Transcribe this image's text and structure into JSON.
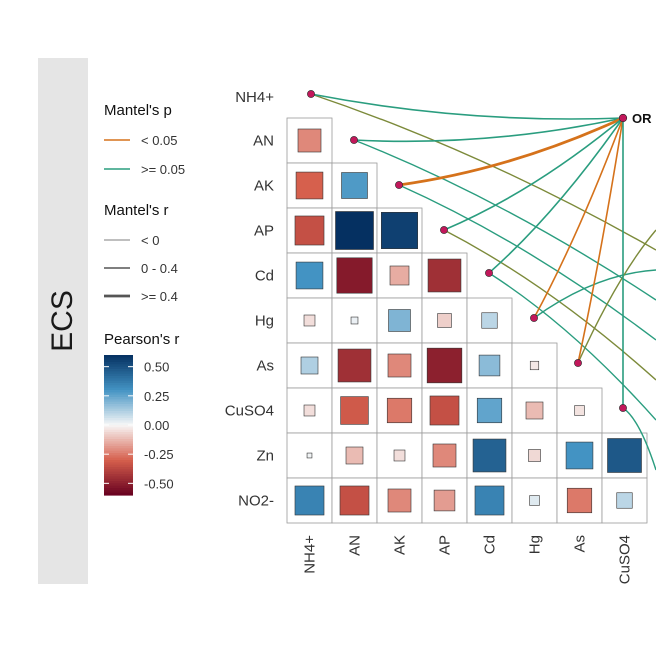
{
  "chart_data": {
    "type": "mantel-correlogram",
    "panel_label": "ECS",
    "variables": [
      "NH4+",
      "AN",
      "AK",
      "AP",
      "Cd",
      "Hg",
      "As",
      "CuSO4",
      "Zn",
      "NO2-"
    ],
    "pearson_matrix": [
      [
        null,
        null,
        null,
        null,
        null,
        null,
        null,
        null,
        null,
        null
      ],
      [
        -0.22,
        null,
        null,
        null,
        null,
        null,
        null,
        null,
        null,
        null
      ],
      [
        -0.3,
        0.28,
        null,
        null,
        null,
        null,
        null,
        null,
        null,
        null
      ],
      [
        -0.35,
        0.6,
        0.55,
        null,
        null,
        null,
        null,
        null,
        null,
        null
      ],
      [
        0.3,
        -0.52,
        -0.15,
        -0.45,
        null,
        null,
        null,
        null,
        null,
        null
      ],
      [
        -0.05,
        0.02,
        0.2,
        -0.08,
        0.1,
        null,
        null,
        null,
        null,
        null
      ],
      [
        0.12,
        -0.45,
        -0.22,
        -0.5,
        0.18,
        -0.03,
        null,
        null,
        null,
        null
      ],
      [
        -0.05,
        -0.32,
        -0.25,
        -0.35,
        0.25,
        -0.12,
        -0.04,
        null,
        null,
        null
      ],
      [
        0.01,
        -0.12,
        -0.05,
        -0.22,
        0.45,
        -0.06,
        0.3,
        0.48,
        null,
        null
      ],
      [
        0.35,
        -0.35,
        -0.22,
        -0.18,
        0.35,
        0.04,
        -0.25,
        0.1,
        null,
        null
      ]
    ],
    "mantel": {
      "source": "OR",
      "links": [
        {
          "target": "NH4+",
          "p": ">= 0.05",
          "r": "0 - 0.4"
        },
        {
          "target": "AN",
          "p": ">= 0.05",
          "r": "0 - 0.4"
        },
        {
          "target": "AK",
          "p": "< 0.05",
          "r": ">= 0.4"
        },
        {
          "target": "AP",
          "p": ">= 0.05",
          "r": "0 - 0.4"
        },
        {
          "target": "Cd",
          "p": ">= 0.05",
          "r": "0 - 0.4"
        },
        {
          "target": "Hg",
          "p": "< 0.05",
          "r": "0 - 0.4"
        },
        {
          "target": "As",
          "p": "< 0.05",
          "r": "0 - 0.4"
        },
        {
          "target": "CuSO4",
          "p": ">= 0.05",
          "r": "0 - 0.4"
        }
      ]
    },
    "legend": {
      "mantel_p_title": "Mantel's p",
      "mantel_p_levels": [
        {
          "label": "< 0.05",
          "color": "#d5721b"
        },
        {
          "label": ">= 0.05",
          "color": "#2a9d7f"
        }
      ],
      "mantel_r_title": "Mantel's r",
      "mantel_r_levels": [
        "< 0",
        "0 - 0.4",
        ">= 0.4"
      ],
      "pearson_title": "Pearson's r",
      "pearson_ticks": [
        "0.50",
        "0.25",
        "0.00",
        "-0.25",
        "-0.50"
      ],
      "pearson_range": [
        -0.6,
        0.6
      ]
    },
    "colors": {
      "neg_strong": "#67001f",
      "neg_mid": "#d6604d",
      "neutral": "#f7f7f7",
      "pos_mid": "#4393c3",
      "pos_strong": "#053061",
      "node": "#c2185b"
    }
  }
}
